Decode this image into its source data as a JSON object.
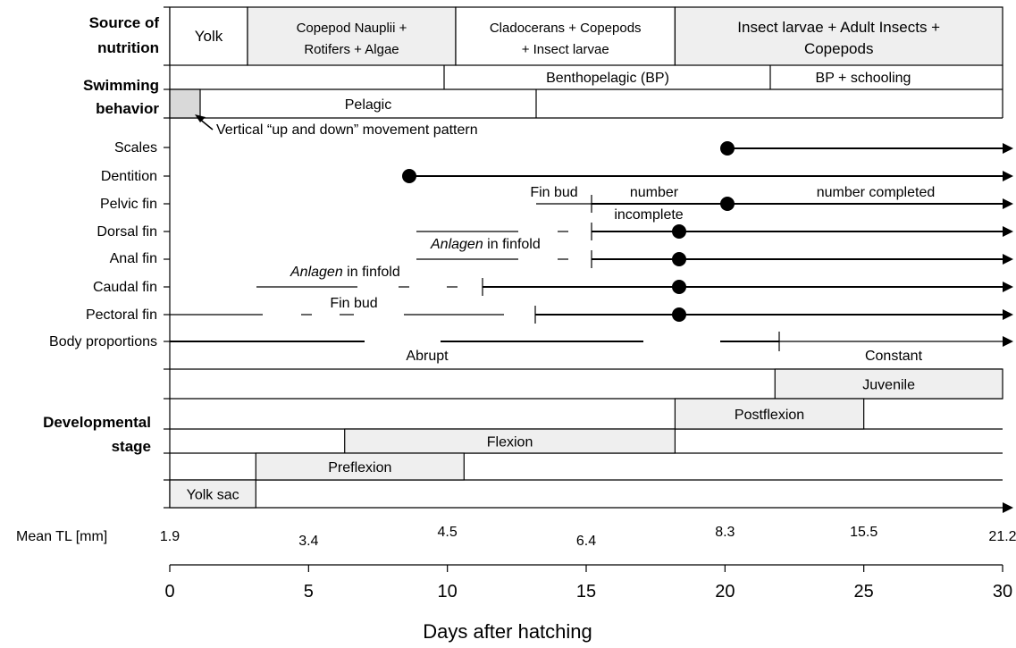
{
  "left_labels": {
    "nutrition_line1": "Source of",
    "nutrition_line2": "nutrition",
    "swimming_line1": "Swimming",
    "swimming_line2": "behavior",
    "stage_line1": "Developmental",
    "stage_line2": "stage"
  },
  "nutrition": {
    "segments": [
      {
        "from": 0,
        "to": 2.8,
        "lines": [
          "Yolk"
        ],
        "shaded": false
      },
      {
        "from": 2.8,
        "to": 10.3,
        "lines": [
          "Copepod Nauplii +",
          "Rotifers + Algae"
        ],
        "shaded": true
      },
      {
        "from": 10.3,
        "to": 18.2,
        "lines": [
          "Cladocerans + Copepods",
          "+ Insect larvae"
        ],
        "shaded": false
      },
      {
        "from": 18.2,
        "to": 30,
        "lines": [
          "Insect larvae + Adult Insects +",
          "Copepods"
        ],
        "shaded": true
      }
    ]
  },
  "swimming": {
    "benthopelagic": {
      "from": 9.9,
      "to": 21.8,
      "text": "Benthopelagic (BP)"
    },
    "schooling": {
      "from": 21.8,
      "to": 30,
      "text": "BP + schooling"
    },
    "pelagic": {
      "from": 1.1,
      "to": 13.2,
      "text": "Pelagic"
    },
    "vertical_box": {
      "from": 0,
      "to": 1.1
    },
    "vertical_note": "Vertical “up and down” movement pattern"
  },
  "features": [
    {
      "label": "Scales"
    },
    {
      "label": "Dentition"
    },
    {
      "label": "Pelvic fin"
    },
    {
      "label": "Dorsal fin"
    },
    {
      "label": "Anal fin"
    },
    {
      "label": "Caudal fin"
    },
    {
      "label": "Pectoral fin"
    },
    {
      "label": "Body proportions"
    }
  ],
  "feature_notes": {
    "pelvic_fin_bud": "Fin bud",
    "pelvic_number": "number",
    "pelvic_incomplete": "incomplete",
    "pelvic_completed": "number completed",
    "anlagen_word": "Anlagen",
    "anlagen_rest": " in finfold",
    "pectoral_fin_bud": "Fin bud",
    "abrupt": "Abrupt",
    "constant": "Constant"
  },
  "stages": [
    {
      "name": "Juvenile",
      "from": 21.8,
      "to": 30
    },
    {
      "name": "Postflexion",
      "from": 18.2,
      "to": 25
    },
    {
      "name": "Flexion",
      "from": 6.3,
      "to": 18.2
    },
    {
      "name": "Preflexion",
      "from": 3.1,
      "to": 10.6
    },
    {
      "name": "Yolk sac",
      "from": 0,
      "to": 3.1
    }
  ],
  "mean_tl": {
    "label": "Mean TL [mm]",
    "values": [
      {
        "day": 0,
        "value": "1.9"
      },
      {
        "day": 5,
        "value": "3.4"
      },
      {
        "day": 10,
        "value": "4.5"
      },
      {
        "day": 15,
        "value": "6.4"
      },
      {
        "day": 20,
        "value": "8.3"
      },
      {
        "day": 25,
        "value": "15.5"
      },
      {
        "day": 30,
        "value": "21.2"
      }
    ]
  },
  "x_axis": {
    "title": "Days after hatching",
    "range": [
      0,
      30
    ],
    "ticks": [
      "0",
      "5",
      "10",
      "15",
      "20",
      "25",
      "30"
    ]
  }
}
